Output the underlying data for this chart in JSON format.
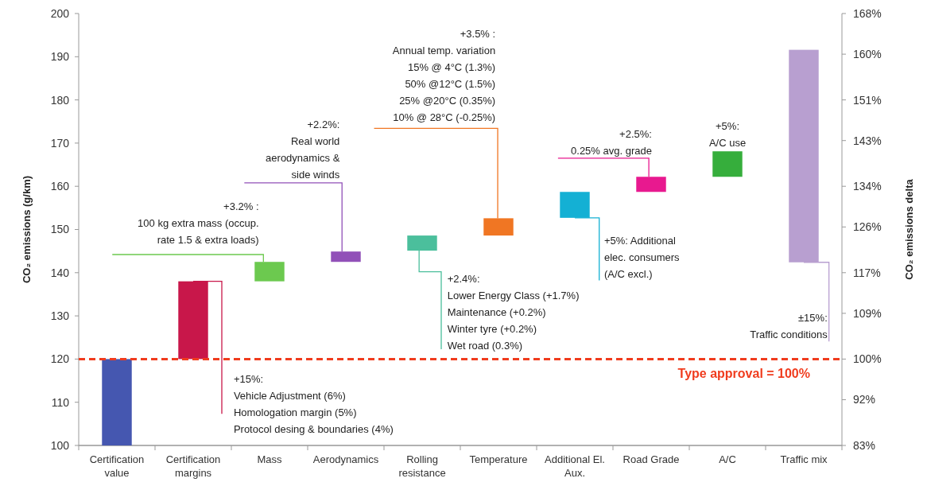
{
  "chart_data": {
    "type": "bar",
    "categories": [
      "Certification value",
      "Certification margins",
      "Mass",
      "Aerodynamics",
      "Rolling resistance",
      "Temperature",
      "Additional El. Aux.",
      "Road Grade",
      "A/C",
      "Traffic mix"
    ],
    "values": [
      20,
      18,
      4.5,
      2.4,
      3.5,
      4.0,
      6.0,
      3.5,
      5.9,
      49.2
    ],
    "base": [
      100,
      120,
      138,
      142.5,
      145.1,
      148.6,
      152.7,
      158.7,
      162.2,
      142.4
    ],
    "colors": [
      "#4557b0",
      "#c8174a",
      "#6cc94f",
      "#9150b8",
      "#4bbf9c",
      "#f07623",
      "#14b0d4",
      "#e8198f",
      "#36ae3c",
      "#b89fd0"
    ],
    "ylabel": "CO₂ emissions  (g/km)",
    "y2label": "CO₂ emissions delta",
    "ylim": [
      100,
      200
    ],
    "yticks": [
      100,
      110,
      120,
      130,
      140,
      150,
      160,
      170,
      180,
      190,
      200
    ],
    "y2lim": [
      83,
      168
    ],
    "y2ticks": [
      {
        "value": 83,
        "label": "83%"
      },
      {
        "value": 92,
        "label": "92%"
      },
      {
        "value": 100,
        "label": "100%"
      },
      {
        "value": 109,
        "label": "109%"
      },
      {
        "value": 117,
        "label": "117%"
      },
      {
        "value": 126,
        "label": "126%"
      },
      {
        "value": 134,
        "label": "134%"
      },
      {
        "value": 143,
        "label": "143%"
      },
      {
        "value": 151,
        "label": "151%"
      },
      {
        "value": 160,
        "label": "160%"
      },
      {
        "value": 168,
        "label": "168%"
      }
    ],
    "ref_lines": [
      {
        "axis": "y2",
        "value": 100,
        "label": "Type approval = 100%",
        "color": "#f03c1e",
        "line_style": "dashed"
      }
    ],
    "annotations": [
      {
        "text": "+15%:\nVehicle Adjustment (6%)\nHomologation margin (5%)\nProtocol desing & boundaries (4%)",
        "x": "Certification margins",
        "y": 138
      },
      {
        "text": "+3.2% :\n100 kg extra  mass (occup.\nrate 1.5  &  extra loads)",
        "x": "Mass",
        "y": 142.5
      },
      {
        "text": "+2.2%:\nReal world\naerodynamics  &\nside winds",
        "x": "Aerodynamics",
        "y": 144.9
      },
      {
        "text": "+2.4%:\nLower Energy Class (+1.7%)\nMaintenance (+0.2%)\nWinter tyre (+0.2%)\nWet road (0.3%)",
        "x": "Rolling resistance",
        "y": 145.1
      },
      {
        "text": "+3.5% :\nAnnual temp. variation\n15% @ 4°C (1.3%)\n50% @12°C (1.5%)\n25% @20°C (0.35%)\n10% @ 28°C (-0.25%)",
        "x": "Temperature",
        "y": 152.6
      },
      {
        "text": "+5%: Additional\nelec. consumers\n(A/C excl.)",
        "x": "Additional El. Aux.",
        "y": 152.7
      },
      {
        "text": "+2.5%:\n0.25% avg. grade",
        "x": "Road Grade",
        "y": 162.2
      },
      {
        "text": "+5%:\nA/C use",
        "x": "A/C",
        "y": 168.1
      },
      {
        "text": "±15%:\nTraffic conditions",
        "x": "Traffic mix",
        "y": 142.4
      }
    ],
    "grid": false
  }
}
